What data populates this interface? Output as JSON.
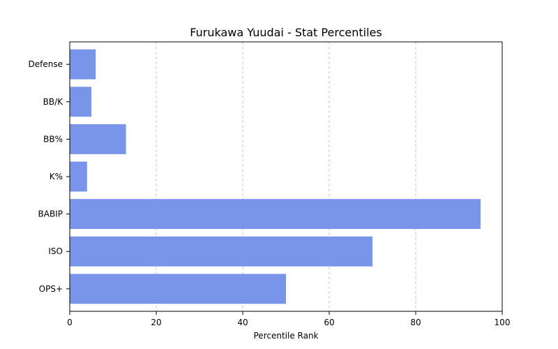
{
  "chart_data": {
    "type": "bar",
    "orientation": "horizontal",
    "title": "Furukawa Yuudai - Stat Percentiles",
    "xlabel": "Percentile Rank",
    "ylabel": "",
    "categories": [
      "OPS+",
      "ISO",
      "BABIP",
      "K%",
      "BB%",
      "BB/K",
      "Defense"
    ],
    "values": [
      50,
      70,
      95,
      4,
      13,
      5,
      6
    ],
    "xlim": [
      0,
      100
    ],
    "xticks": [
      0,
      20,
      40,
      60,
      80,
      100
    ],
    "grid": "x-dashed",
    "bar_color": "#7995e9"
  }
}
